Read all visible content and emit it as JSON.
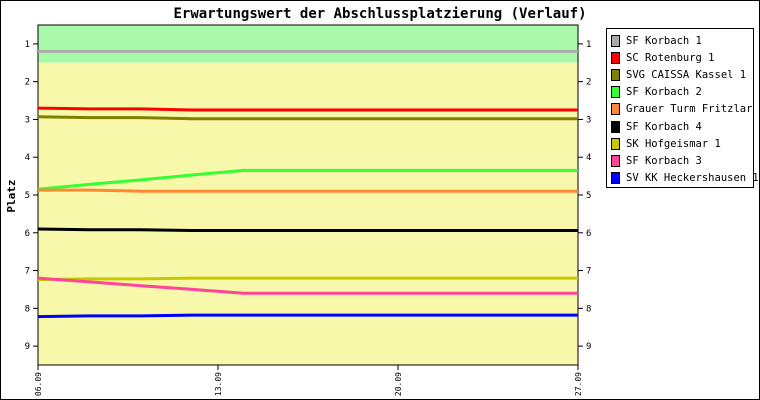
{
  "chart_data": {
    "type": "line",
    "title": "Erwartungswert der Abschlussplatzierung (Verlauf)",
    "ylabel": "Platz",
    "xlabel": "",
    "ylim": [
      0.5,
      9.5
    ],
    "y_inverted": true,
    "y_ticks": [
      "1",
      "2",
      "3",
      "4",
      "5",
      "6",
      "7",
      "8",
      "9"
    ],
    "x_ticks": [
      "06.09",
      "13.09",
      "20.09",
      "27.09"
    ],
    "x": [
      "06.09",
      "08.09",
      "10.09",
      "12.09",
      "14.09",
      "27.09"
    ],
    "bands": [
      {
        "from": 0.5,
        "to": 1.5,
        "color": "#aaf8aa"
      },
      {
        "from": 1.5,
        "to": 9.5,
        "color": "#f8f8aa"
      }
    ],
    "grid": false,
    "legend_position": "right",
    "series": [
      {
        "name": "SF Korbach 1",
        "color": "#aaaaaa",
        "values": [
          1.2,
          1.2,
          1.2,
          1.2,
          1.2,
          1.2
        ]
      },
      {
        "name": "SC Rotenburg 1",
        "color": "#ff0000",
        "values": [
          2.7,
          2.72,
          2.72,
          2.75,
          2.75,
          2.75
        ]
      },
      {
        "name": "SVG CAISSA Kassel 1",
        "color": "#808000",
        "values": [
          2.93,
          2.95,
          2.95,
          2.98,
          2.98,
          2.98
        ]
      },
      {
        "name": "SF Korbach 2",
        "color": "#33ff33",
        "values": [
          4.85,
          4.72,
          4.6,
          4.47,
          4.35,
          4.35
        ]
      },
      {
        "name": "Grauer Turm Fritzlar",
        "color": "#ff8833",
        "values": [
          4.87,
          4.87,
          4.9,
          4.9,
          4.9,
          4.9
        ]
      },
      {
        "name": "SF Korbach 4",
        "color": "#000000",
        "values": [
          5.9,
          5.92,
          5.92,
          5.94,
          5.94,
          5.94
        ]
      },
      {
        "name": "SK Hofgeismar 1",
        "color": "#c8c800",
        "values": [
          7.24,
          7.22,
          7.22,
          7.2,
          7.2,
          7.2
        ]
      },
      {
        "name": "SF Korbach 3",
        "color": "#ff4499",
        "values": [
          7.2,
          7.3,
          7.4,
          7.5,
          7.6,
          7.6
        ]
      },
      {
        "name": "SV KK Heckershausen 1",
        "color": "#0000ff",
        "values": [
          8.22,
          8.2,
          8.2,
          8.18,
          8.18,
          8.18
        ]
      }
    ]
  }
}
